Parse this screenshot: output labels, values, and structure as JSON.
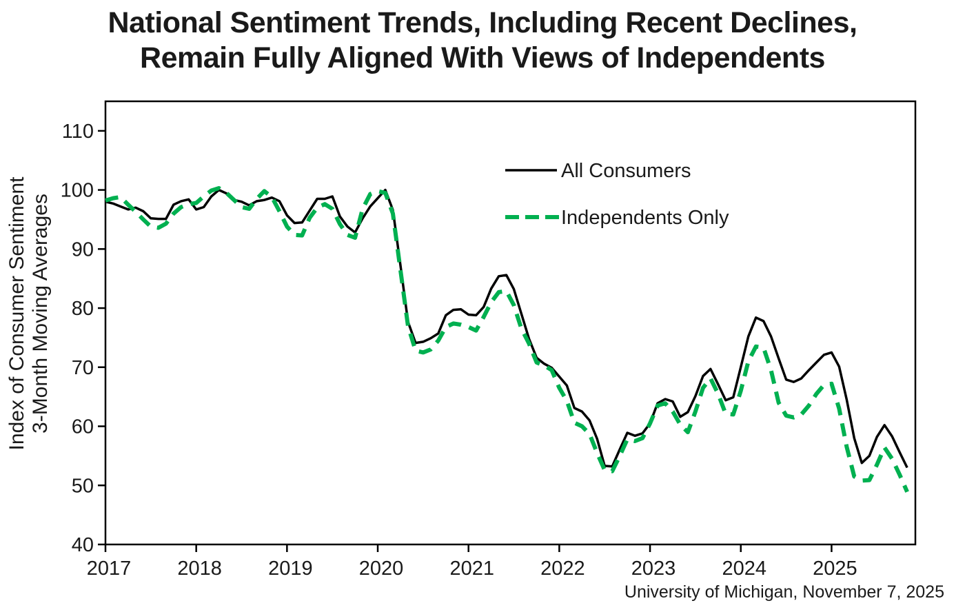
{
  "title": {
    "line1": "National Sentiment Trends, Including Recent Declines,",
    "line2": "Remain Fully Aligned With Views of Independents"
  },
  "source": "University of Michigan, November 7, 2025",
  "colors": {
    "all_consumers_line": "#000000",
    "independents_line": "#00B050",
    "text": "#1a1a1a"
  },
  "chart_data": {
    "type": "line",
    "title": "National Sentiment Trends, Including Recent Declines, Remain Fully Aligned With Views of Independents",
    "xlabel": "",
    "ylabel_line1": "Index of Consumer Sentiment",
    "ylabel_line2": "3-Month Moving Averages",
    "x_frequency": "monthly",
    "x_start": "2017-01",
    "x_end": "2025-11",
    "ylim": [
      40,
      115
    ],
    "yticks": [
      110,
      100,
      90,
      80,
      70,
      60,
      50,
      40
    ],
    "xticks": [
      "2017",
      "2018",
      "2019",
      "2020",
      "2021",
      "2022",
      "2023",
      "2024",
      "2025"
    ],
    "grid": false,
    "legend_position": "upper-right-inside",
    "x": [
      "2017-01",
      "2017-02",
      "2017-03",
      "2017-04",
      "2017-05",
      "2017-06",
      "2017-07",
      "2017-08",
      "2017-09",
      "2017-10",
      "2017-11",
      "2017-12",
      "2018-01",
      "2018-02",
      "2018-03",
      "2018-04",
      "2018-05",
      "2018-06",
      "2018-07",
      "2018-08",
      "2018-09",
      "2018-10",
      "2018-11",
      "2018-12",
      "2019-01",
      "2019-02",
      "2019-03",
      "2019-04",
      "2019-05",
      "2019-06",
      "2019-07",
      "2019-08",
      "2019-09",
      "2019-10",
      "2019-11",
      "2019-12",
      "2020-01",
      "2020-02",
      "2020-03",
      "2020-04",
      "2020-05",
      "2020-06",
      "2020-07",
      "2020-08",
      "2020-09",
      "2020-10",
      "2020-11",
      "2020-12",
      "2021-01",
      "2021-02",
      "2021-03",
      "2021-04",
      "2021-05",
      "2021-06",
      "2021-07",
      "2021-08",
      "2021-09",
      "2021-10",
      "2021-11",
      "2021-12",
      "2022-01",
      "2022-02",
      "2022-03",
      "2022-04",
      "2022-05",
      "2022-06",
      "2022-07",
      "2022-08",
      "2022-09",
      "2022-10",
      "2022-11",
      "2022-12",
      "2023-01",
      "2023-02",
      "2023-03",
      "2023-04",
      "2023-05",
      "2023-06",
      "2023-07",
      "2023-08",
      "2023-09",
      "2023-10",
      "2023-11",
      "2023-12",
      "2024-01",
      "2024-02",
      "2024-03",
      "2024-04",
      "2024-05",
      "2024-06",
      "2024-07",
      "2024-08",
      "2024-09",
      "2024-10",
      "2024-11",
      "2024-12",
      "2025-01",
      "2025-02",
      "2025-03",
      "2025-04",
      "2025-05",
      "2025-06",
      "2025-07",
      "2025-08",
      "2025-09",
      "2025-10",
      "2025-11"
    ],
    "series": [
      {
        "name": "All Consumers",
        "color": "#000000",
        "style": "solid",
        "values": [
          98.0,
          97.7,
          97.2,
          96.7,
          97.0,
          96.4,
          95.2,
          95.1,
          95.1,
          97.5,
          98.1,
          98.4,
          96.7,
          97.1,
          98.9,
          100.0,
          99.4,
          98.3,
          98.0,
          97.4,
          98.1,
          98.3,
          98.7,
          98.1,
          95.7,
          94.4,
          94.5,
          96.5,
          98.5,
          98.5,
          98.9,
          95.5,
          93.8,
          92.8,
          95.2,
          97.2,
          98.6,
          100.0,
          96.6,
          87.3,
          77.7,
          74.1,
          74.3,
          74.9,
          75.7,
          78.8,
          79.7,
          79.8,
          78.9,
          78.8,
          80.2,
          83.3,
          85.4,
          85.6,
          83.2,
          79.0,
          74.8,
          71.6,
          70.6,
          69.9,
          68.4,
          66.9,
          63.1,
          62.5,
          61.0,
          57.9,
          53.3,
          53.2,
          56.1,
          58.9,
          58.4,
          58.8,
          60.5,
          63.9,
          64.6,
          64.2,
          61.6,
          62.4,
          65.1,
          68.5,
          69.7,
          67.1,
          64.4,
          64.9,
          70.0,
          75.2,
          78.4,
          77.8,
          75.2,
          71.5,
          67.9,
          67.5,
          68.1,
          69.5,
          70.8,
          72.1,
          72.5,
          70.1,
          64.5,
          58.0,
          53.8,
          55.0,
          58.2,
          60.2,
          58.3,
          55.6,
          53.0
        ]
      },
      {
        "name": "Independents Only",
        "color": "#00B050",
        "style": "dashed",
        "values": [
          98.2,
          98.6,
          98.8,
          97.5,
          96.3,
          95.0,
          93.8,
          93.6,
          94.3,
          96.0,
          97.1,
          97.6,
          97.8,
          98.9,
          99.9,
          100.3,
          99.5,
          98.3,
          97.1,
          96.8,
          98.5,
          99.8,
          98.8,
          96.4,
          93.8,
          92.4,
          92.3,
          95.3,
          97.0,
          97.6,
          96.8,
          94.2,
          92.4,
          91.9,
          96.8,
          99.3,
          99.8,
          99.5,
          96.0,
          86.5,
          77.0,
          72.8,
          72.5,
          73.0,
          74.5,
          76.8,
          77.4,
          77.2,
          76.8,
          76.2,
          78.5,
          81.0,
          82.7,
          82.9,
          80.5,
          76.5,
          74.0,
          70.8,
          70.3,
          69.5,
          66.5,
          64.3,
          60.6,
          60.0,
          58.7,
          55.5,
          52.6,
          52.4,
          55.0,
          57.8,
          57.5,
          58.0,
          60.5,
          63.5,
          63.9,
          62.5,
          60.3,
          59.0,
          62.5,
          66.5,
          68.1,
          65.5,
          62.1,
          62.0,
          66.0,
          71.0,
          73.5,
          73.3,
          69.5,
          64.0,
          61.8,
          61.5,
          62.0,
          63.5,
          65.5,
          67.0,
          67.2,
          63.0,
          56.5,
          51.5,
          50.8,
          50.9,
          53.5,
          56.4,
          54.5,
          51.8,
          48.9
        ]
      }
    ]
  }
}
